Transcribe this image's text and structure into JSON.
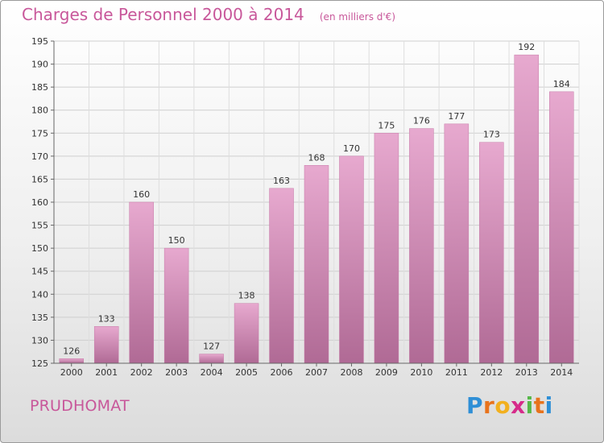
{
  "title": "Charges de Personnel 2000 à 2014",
  "subtitle": "(en milliers d'€)",
  "place": "PRUDHOMAT",
  "logo": {
    "letters": [
      "P",
      "r",
      "o",
      "x",
      "i",
      "t",
      "i"
    ],
    "colors": [
      "#2f8fd6",
      "#e8731c",
      "#f2b01e",
      "#d62b8a",
      "#55b848",
      "#e8731c",
      "#2f8fd6"
    ]
  },
  "chart_data": {
    "type": "bar",
    "categories": [
      "2000",
      "2001",
      "2002",
      "2003",
      "2004",
      "2005",
      "2006",
      "2007",
      "2008",
      "2009",
      "2010",
      "2011",
      "2012",
      "2013",
      "2014"
    ],
    "values": [
      126,
      133,
      160,
      150,
      127,
      138,
      163,
      168,
      170,
      175,
      176,
      177,
      173,
      192,
      184
    ],
    "ylim": [
      125,
      195
    ],
    "yticks": [
      125,
      130,
      135,
      140,
      145,
      150,
      155,
      160,
      165,
      170,
      175,
      180,
      185,
      190,
      195
    ],
    "grid": true,
    "bar_color": "#d98ab8"
  }
}
